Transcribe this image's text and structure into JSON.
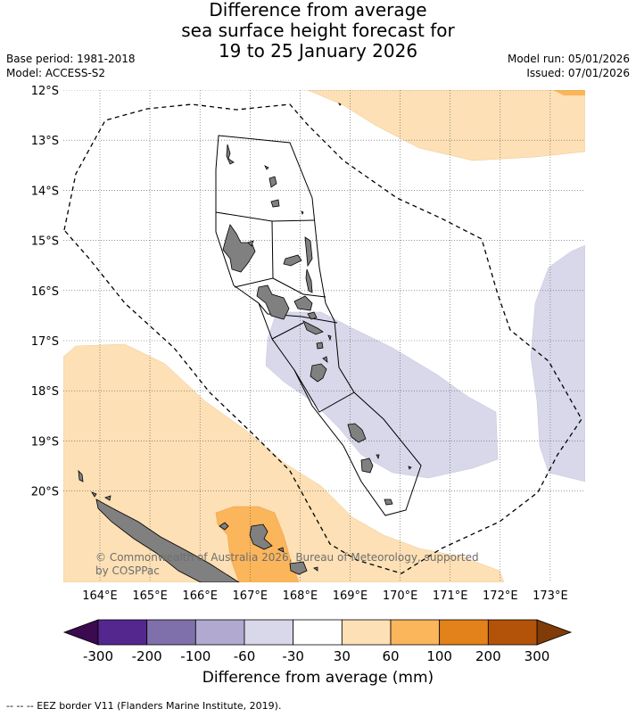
{
  "header": {
    "title_lines": [
      "Difference from average",
      "sea surface height forecast for",
      "19 to 25 January 2026"
    ],
    "base_period": "Base period: 1981-2018",
    "model": "Model: ACCESS-S2",
    "model_run": "Model run: 05/01/2026",
    "issued": "Issued: 07/01/2026"
  },
  "map": {
    "lat_labels": [
      "12°S",
      "13°S",
      "14°S",
      "15°S",
      "16°S",
      "17°S",
      "18°S",
      "19°S",
      "20°S"
    ],
    "lon_labels": [
      "164°E",
      "165°E",
      "166°E",
      "167°E",
      "168°E",
      "169°E",
      "170°E",
      "171°E",
      "172°E",
      "173°E"
    ],
    "copyright_lines": [
      "© Commonwealth of Australia 2026, Bureau of Meteorology, supported",
      "by COSPPac"
    ],
    "colors": {
      "above_30_60": "#fde0b5",
      "above_60_100": "#fbb55a",
      "below_60_30": "#d8d8ea",
      "land": "#808080"
    }
  },
  "colorbar": {
    "ticks": [
      "-300",
      "-200",
      "-100",
      "-60",
      "-30",
      "30",
      "60",
      "100",
      "200",
      "300"
    ],
    "colors": [
      "#54278f",
      "#7f6faa",
      "#b1a9d0",
      "#d8d8ea",
      "#ffffff",
      "#fde0b5",
      "#fbb55a",
      "#e3811a",
      "#b3530a"
    ],
    "under_color": "#3b0a4f",
    "over_color": "#7f3b08",
    "label": "Difference from average (mm)"
  },
  "footnote": "-- -- -- EEZ border V11 (Flanders Marine Institute, 2019)."
}
